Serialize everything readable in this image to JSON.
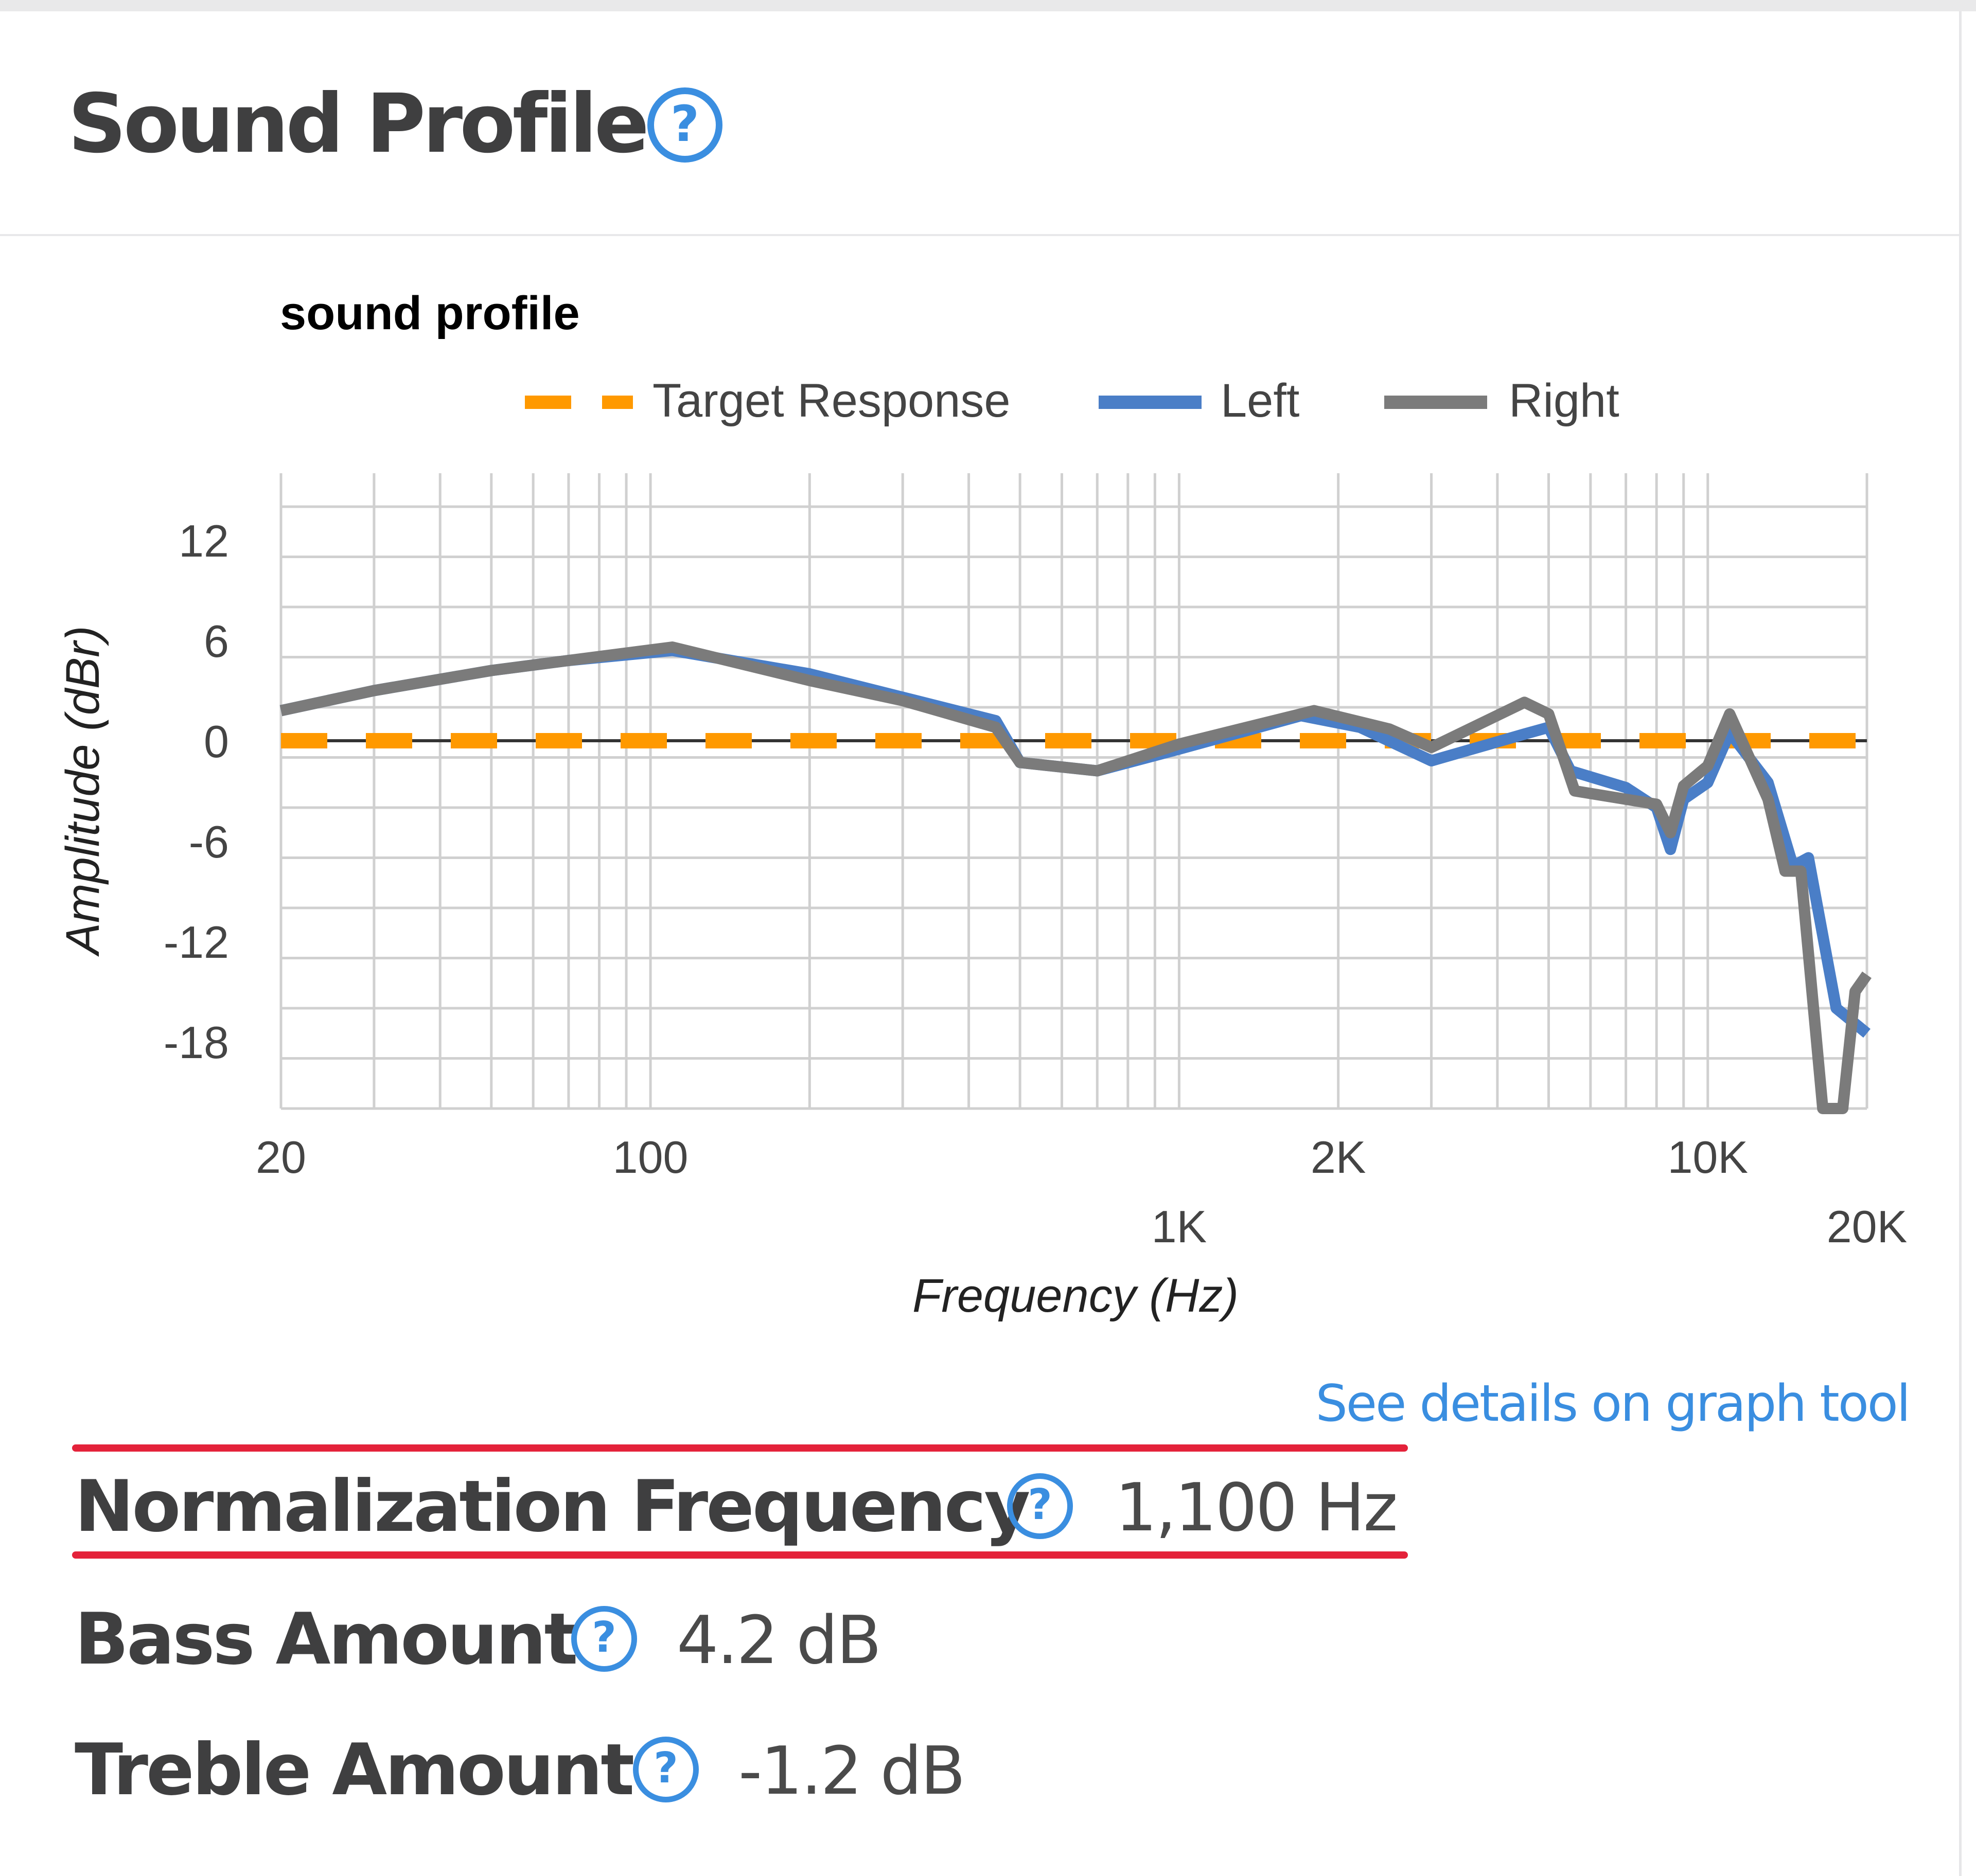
{
  "section": {
    "title": "Sound Profile",
    "help_icon": "question-circle-icon"
  },
  "chart_data": {
    "type": "line",
    "title": "sound profile",
    "xlabel": "Frequency (Hz)",
    "ylabel": "Amplitude (dBr)",
    "x_scale": "log",
    "xlim": [
      20,
      20000
    ],
    "ylim": [
      -22,
      16
    ],
    "x_tick_labels": [
      "20",
      "100",
      "1K",
      "2K",
      "10K",
      "20K"
    ],
    "x_tick_values": [
      20,
      100,
      1000,
      2000,
      10000,
      20000
    ],
    "y_tick_labels": [
      "12",
      "6",
      "0",
      "-6",
      "-12",
      "-18"
    ],
    "y_tick_values": [
      12,
      6,
      0,
      -6,
      -12,
      -18
    ],
    "grid": true,
    "legend_position": "top-center",
    "series": [
      {
        "name": "Target Response",
        "color": "#ff9900",
        "style": "dashed",
        "points": [
          [
            20,
            0
          ],
          [
            20000,
            0
          ]
        ]
      },
      {
        "name": "Left",
        "color": "#4a7ec7",
        "style": "solid",
        "points": [
          [
            20,
            1.8
          ],
          [
            30,
            3
          ],
          [
            50,
            4.2
          ],
          [
            70,
            4.8
          ],
          [
            110,
            5.4
          ],
          [
            200,
            4
          ],
          [
            300,
            2.6
          ],
          [
            450,
            1.2
          ],
          [
            500,
            -1.3
          ],
          [
            700,
            -1.8
          ],
          [
            1000,
            -0.5
          ],
          [
            1700,
            1.5
          ],
          [
            2200,
            0.8
          ],
          [
            3000,
            -1.2
          ],
          [
            4500,
            0.4
          ],
          [
            5000,
            0.8
          ],
          [
            5500,
            -1.8
          ],
          [
            7000,
            -2.8
          ],
          [
            8000,
            -4
          ],
          [
            8500,
            -6.5
          ],
          [
            9000,
            -3.5
          ],
          [
            10000,
            -2.5
          ],
          [
            11000,
            0.5
          ],
          [
            13000,
            -2.5
          ],
          [
            14500,
            -7.5
          ],
          [
            15500,
            -7
          ],
          [
            17500,
            -16
          ],
          [
            20000,
            -17.5
          ]
        ]
      },
      {
        "name": "Right",
        "color": "#7b7b7b",
        "style": "solid",
        "points": [
          [
            20,
            1.8
          ],
          [
            30,
            3
          ],
          [
            50,
            4.2
          ],
          [
            70,
            4.8
          ],
          [
            110,
            5.6
          ],
          [
            200,
            3.6
          ],
          [
            300,
            2.4
          ],
          [
            450,
            0.8
          ],
          [
            500,
            -1.3
          ],
          [
            700,
            -1.8
          ],
          [
            1000,
            -0.2
          ],
          [
            1800,
            1.8
          ],
          [
            2500,
            0.7
          ],
          [
            3000,
            -0.4
          ],
          [
            4500,
            2.3
          ],
          [
            5000,
            1.6
          ],
          [
            5600,
            -3
          ],
          [
            7000,
            -3.5
          ],
          [
            8000,
            -3.8
          ],
          [
            8500,
            -5.5
          ],
          [
            9000,
            -2.7
          ],
          [
            10000,
            -1.5
          ],
          [
            11000,
            1.6
          ],
          [
            13000,
            -3.5
          ],
          [
            14000,
            -7.8
          ],
          [
            15000,
            -7.8
          ],
          [
            16500,
            -22
          ],
          [
            18000,
            -22
          ],
          [
            19000,
            -15
          ],
          [
            20000,
            -14
          ]
        ]
      }
    ]
  },
  "link": {
    "label": "See details on graph tool"
  },
  "stats": [
    {
      "label": "Normalization Frequency",
      "value": "1,100 Hz",
      "highlighted": true
    },
    {
      "label": "Bass Amount",
      "value": "4.2 dB",
      "highlighted": false
    },
    {
      "label": "Treble Amount",
      "value": "-1.2 dB",
      "highlighted": false
    }
  ]
}
